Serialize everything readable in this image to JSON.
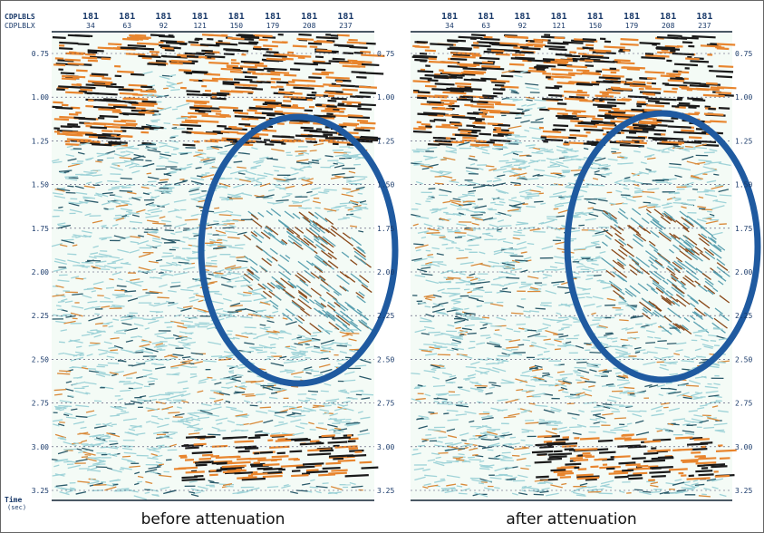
{
  "axis": {
    "row_labels": [
      "CDPLBLS",
      "CDPLBLX"
    ],
    "time_label": "Time",
    "time_unit": "(sec)"
  },
  "panels": [
    {
      "top_row": [
        "181",
        "181",
        "181",
        "181",
        "181",
        "181",
        "181",
        "181"
      ],
      "second_row": [
        "34",
        "63",
        "92",
        "121",
        "150",
        "179",
        "208",
        "237"
      ],
      "left_time_labels": [
        "0.75",
        "1.00",
        "1.25",
        "1.50",
        "1.75",
        "2.00",
        "2.25",
        "2.50",
        "2.75",
        "3.00",
        "3.25"
      ],
      "right_time_labels": [
        "0.75",
        "1.00",
        "1.25",
        "1.50",
        "1.75",
        "2.00",
        "2.25",
        "2.50",
        "2.75",
        "3.00",
        "3.25"
      ],
      "caption": "before attenuation"
    },
    {
      "top_row": [
        "181",
        "181",
        "181",
        "181",
        "181",
        "181",
        "181",
        "181"
      ],
      "second_row": [
        "34",
        "63",
        "92",
        "121",
        "150",
        "179",
        "208",
        "237"
      ],
      "right_time_labels": [
        "0.75",
        "1.00",
        "1.25",
        "1.50",
        "1.75",
        "2.00",
        "2.25",
        "2.50",
        "2.75",
        "3.00",
        "3.25"
      ],
      "caption": "after attenuation"
    }
  ]
}
